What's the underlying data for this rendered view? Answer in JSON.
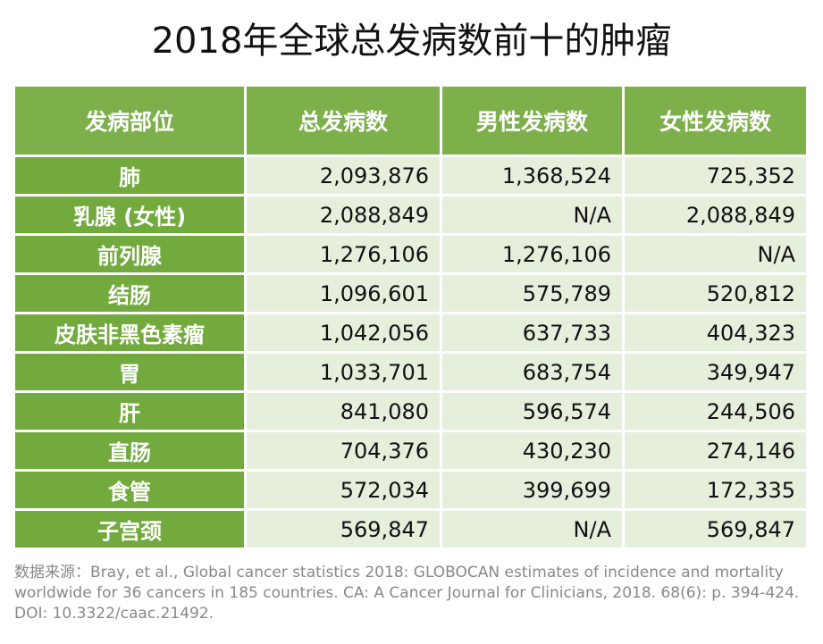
{
  "title": "2018年全球总发病数前十的肿瘤",
  "source": "数据来源：Bray, et al., Global cancer statistics 2018: GLOBOCAN estimates of incidence and mortality worldwide for 36 cancers in 185 countries. CA: A Cancer Journal for Clinicians, 2018. 68(6): p. 394-424. DOI: 10.3322/caac.21492.",
  "colors": {
    "header_bg": "#7db04a",
    "site_bg": "#72aa3e",
    "cell_bg": "#e6eedc"
  },
  "chart_data": {
    "type": "table",
    "title": "2018年全球总发病数前十的肿瘤",
    "columns": [
      "发病部位",
      "总发病数",
      "男性发病数",
      "女性发病数"
    ],
    "rows": [
      [
        "肺",
        "2,093,876",
        "1,368,524",
        "725,352"
      ],
      [
        "乳腺 (女性)",
        "2,088,849",
        "N/A",
        "2,088,849"
      ],
      [
        "前列腺",
        "1,276,106",
        "1,276,106",
        "N/A"
      ],
      [
        "结肠",
        "1,096,601",
        "575,789",
        "520,812"
      ],
      [
        "皮肤非黑色素瘤",
        "1,042,056",
        "637,733",
        "404,323"
      ],
      [
        "胃",
        "1,033,701",
        "683,754",
        "349,947"
      ],
      [
        "肝",
        "841,080",
        "596,574",
        "244,506"
      ],
      [
        "直肠",
        "704,376",
        "430,230",
        "274,146"
      ],
      [
        "食管",
        "572,034",
        "399,699",
        "172,335"
      ],
      [
        "子宫颈",
        "569,847",
        "N/A",
        "569,847"
      ]
    ]
  }
}
